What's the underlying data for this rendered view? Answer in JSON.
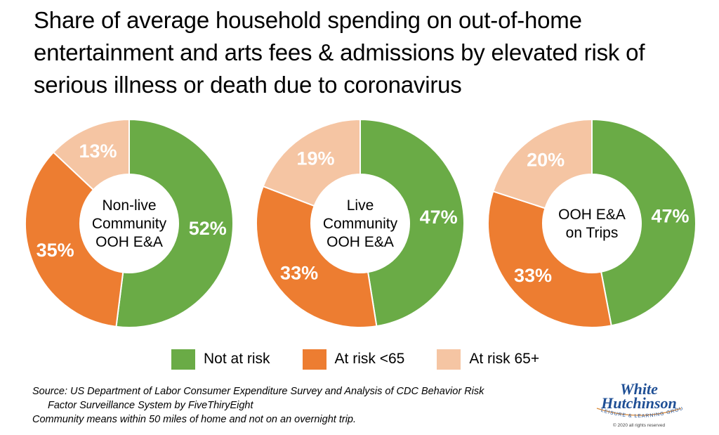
{
  "title": "Share of average household spending on out-of-home entertainment and arts fees & admissions by elevated risk of serious illness or death due to coronavirus",
  "colors": {
    "not_at_risk": "#6aab46",
    "at_risk_under_65": "#ed7d31",
    "at_risk_65_plus": "#f5c5a3"
  },
  "chart_data": [
    {
      "type": "pie",
      "center_label": [
        "Non-live",
        "Community",
        "OOH E&A"
      ],
      "slices": [
        {
          "name": "Not at risk",
          "value": 52,
          "label": "52%"
        },
        {
          "name": "At risk <65",
          "value": 35,
          "label": "35%"
        },
        {
          "name": "At risk 65+",
          "value": 13,
          "label": "13%"
        }
      ]
    },
    {
      "type": "pie",
      "center_label": [
        "Live",
        "Community",
        "OOH E&A"
      ],
      "slices": [
        {
          "name": "Not at risk",
          "value": 47,
          "label": "47%"
        },
        {
          "name": "At risk <65",
          "value": 33,
          "label": "33%"
        },
        {
          "name": "At risk 65+",
          "value": 19,
          "label": "19%"
        }
      ]
    },
    {
      "type": "pie",
      "center_label": [
        "OOH E&A",
        "on Trips"
      ],
      "slices": [
        {
          "name": "Not at risk",
          "value": 47,
          "label": "47%"
        },
        {
          "name": "At risk <65",
          "value": 33,
          "label": "33%"
        },
        {
          "name": "At risk 65+",
          "value": 20,
          "label": "20%"
        }
      ]
    }
  ],
  "legend": [
    {
      "label": "Not at risk",
      "color": "#6aab46"
    },
    {
      "label": "At risk <65",
      "color": "#ed7d31"
    },
    {
      "label": "At risk 65+",
      "color": "#f5c5a3"
    }
  ],
  "footnote": {
    "line1": "Source: US Department of Labor Consumer Expenditure Survey and Analysis of CDC Behavior Risk",
    "line2": "Factor Surveillance System by FiveThiryEight",
    "line3": "Community means within 50 miles of home and not on an overnight trip."
  },
  "logo": {
    "line1": "White",
    "line2": "Hutchinson",
    "tagline": "LEISURE & LEARNING GROUP",
    "copyright": "© 2020 all rights reserved"
  }
}
